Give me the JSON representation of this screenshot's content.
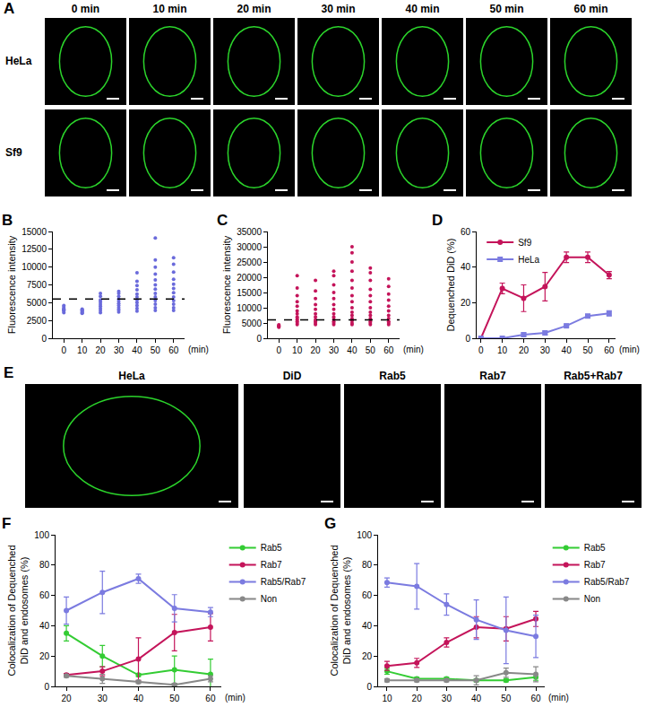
{
  "panels": [
    {
      "panel": "A",
      "columns": [
        "0 min",
        "10 min",
        "20 min",
        "30 min",
        "40 min",
        "50 min",
        "60 min"
      ],
      "rows": [
        "HeLa",
        "Sf9"
      ]
    },
    {
      "panel": "E",
      "images": [
        "HeLa",
        "DiD",
        "Rab5",
        "Rab7",
        "Rab5+Rab7"
      ]
    }
  ],
  "chart_data": [
    {
      "panel": "B",
      "type": "strip",
      "ylabel": [
        "Fluorescence intensity"
      ],
      "xlabel": "(min)",
      "color": "#6a6adb",
      "x": [
        0,
        10,
        20,
        30,
        40,
        50,
        60
      ],
      "values": [
        [
          3600,
          3800,
          3900,
          4000,
          4100,
          4200,
          4400,
          4600
        ],
        [
          3500,
          3600,
          3700,
          3800,
          3900,
          4000,
          4100
        ],
        [
          3600,
          3900,
          4200,
          4500,
          4800,
          5100,
          5400,
          5900,
          6300
        ],
        [
          3700,
          4000,
          4300,
          4600,
          4900,
          5200,
          5500,
          5900,
          6300,
          6600
        ],
        [
          3800,
          4200,
          4600,
          5000,
          5400,
          5800,
          6200,
          6800,
          7400,
          8000,
          9200
        ],
        [
          3900,
          4300,
          4800,
          5300,
          5800,
          6300,
          6900,
          7500,
          8200,
          9000,
          10000,
          11000,
          14100
        ],
        [
          3900,
          4300,
          4800,
          5300,
          5800,
          6400,
          7000,
          7600,
          8300,
          9300,
          10400,
          11300
        ]
      ],
      "reference_line": 5500,
      "xlim": [
        -6,
        66
      ],
      "xticks": [
        0,
        10,
        20,
        30,
        40,
        50,
        60
      ],
      "ylim": [
        0,
        15000
      ],
      "yticks": [
        0,
        2500,
        5000,
        7500,
        10000,
        12500,
        15000
      ],
      "grid": false
    },
    {
      "panel": "C",
      "type": "strip",
      "ylabel": [
        "Fluorescence intensity"
      ],
      "xlabel": "(min)",
      "color": "#c4145a",
      "x": [
        0,
        10,
        20,
        30,
        40,
        50,
        60
      ],
      "values": [
        [
          3600,
          3800,
          4000,
          4200,
          4400
        ],
        [
          4500,
          5000,
          5500,
          6000,
          6500,
          7000,
          8000,
          9000,
          10500,
          12000,
          14000,
          16500,
          20500
        ],
        [
          4500,
          5000,
          5500,
          6000,
          7000,
          8000,
          9500,
          11000,
          13000,
          15500,
          19000
        ],
        [
          4500,
          5000,
          5500,
          6200,
          7000,
          8000,
          9500,
          11000,
          13000,
          15000,
          17500,
          20500,
          22000
        ],
        [
          4500,
          5000,
          5800,
          6500,
          7500,
          8500,
          10000,
          12000,
          14000,
          16500,
          19000,
          22000,
          25000,
          28000,
          30000
        ],
        [
          4500,
          5000,
          5500,
          6500,
          7500,
          8500,
          10000,
          12000,
          14000,
          16000,
          19000,
          21500,
          23000
        ],
        [
          4500,
          5000,
          5500,
          6500,
          7500,
          9000,
          10500,
          12500,
          14500,
          17000,
          19500
        ]
      ],
      "reference_line": 6000,
      "xlim": [
        -6,
        66
      ],
      "xticks": [
        0,
        10,
        20,
        30,
        40,
        50,
        60
      ],
      "ylim": [
        0,
        35000
      ],
      "yticks": [
        0,
        5000,
        10000,
        15000,
        20000,
        25000,
        30000,
        35000
      ],
      "grid": false
    },
    {
      "panel": "D",
      "type": "line",
      "ylabel": [
        "Dequenched DiD (%)"
      ],
      "xlabel": "(min)",
      "x": [
        0,
        10,
        20,
        30,
        40,
        50,
        60
      ],
      "series": [
        {
          "name": "Sf9",
          "color": "#c4145a",
          "marker": "circle",
          "values": [
            0,
            28,
            22.5,
            29,
            45.5,
            45.5,
            35.5
          ],
          "error": [
            0,
            3,
            7.5,
            8,
            3,
            3,
            2
          ]
        },
        {
          "name": "HeLa",
          "color": "#7b7be0",
          "marker": "square",
          "values": [
            0,
            0,
            2,
            3,
            7,
            12.5,
            14
          ],
          "error": [
            0,
            0,
            1,
            1,
            0.5,
            0.5,
            1.5
          ]
        }
      ],
      "legend": "upper left",
      "xlim": [
        -2,
        63
      ],
      "xticks": [
        0,
        10,
        20,
        30,
        40,
        50,
        60
      ],
      "ylim": [
        0,
        60
      ],
      "yticks": [
        0,
        20,
        40,
        60
      ],
      "grid": false
    },
    {
      "panel": "F",
      "type": "line",
      "ylabel": [
        "Colocalization of Dequenched",
        "DiD and endosomes (%)"
      ],
      "xlabel": "(min)",
      "x": [
        20,
        30,
        40,
        50,
        60
      ],
      "series": [
        {
          "name": "Rab5",
          "color": "#33cc33",
          "marker": "circle",
          "values": [
            35,
            20,
            7.5,
            11,
            8
          ],
          "error": [
            5,
            7,
            1,
            9,
            10
          ]
        },
        {
          "name": "Rab7",
          "color": "#c4145a",
          "marker": "circle",
          "values": [
            7.5,
            10,
            18,
            35.5,
            39
          ],
          "error": [
            1,
            3,
            14,
            12,
            9
          ]
        },
        {
          "name": "Rab5/Rab7",
          "color": "#7b7be0",
          "marker": "circle",
          "values": [
            50,
            62,
            71,
            51.5,
            49
          ],
          "error": [
            9,
            14,
            3,
            9,
            3
          ]
        },
        {
          "name": "Non",
          "color": "#888888",
          "marker": "circle",
          "values": [
            7,
            5,
            3,
            1,
            5
          ],
          "error": [
            1,
            3,
            1,
            1,
            2
          ]
        }
      ],
      "legend": "right",
      "xlim": [
        17,
        63
      ],
      "xticks": [
        20,
        30,
        40,
        50,
        60
      ],
      "ylim": [
        0,
        100
      ],
      "yticks": [
        0,
        20,
        40,
        60,
        80,
        100
      ],
      "grid": false
    },
    {
      "panel": "G",
      "type": "line",
      "ylabel": [
        "Colocalization of Dequenched",
        "DiD and endosomes (%)"
      ],
      "xlabel": "(min)",
      "x": [
        10,
        20,
        30,
        40,
        50,
        60
      ],
      "series": [
        {
          "name": "Rab5",
          "color": "#33cc33",
          "marker": "circle",
          "values": [
            10,
            5,
            5,
            4,
            4,
            6
          ],
          "error": [
            2,
            1,
            1,
            1,
            1,
            2
          ]
        },
        {
          "name": "Rab7",
          "color": "#c4145a",
          "marker": "circle",
          "values": [
            13.5,
            15.5,
            29,
            39,
            38,
            44.5
          ],
          "error": [
            3,
            3,
            3,
            7,
            8,
            5
          ]
        },
        {
          "name": "Rab5/Rab7",
          "color": "#7b7be0",
          "marker": "circle",
          "values": [
            68.5,
            66,
            54,
            44,
            37,
            33
          ],
          "error": [
            3,
            15,
            7,
            13,
            22,
            14
          ]
        },
        {
          "name": "Non",
          "color": "#888888",
          "marker": "circle",
          "values": [
            4,
            4,
            4,
            4,
            9,
            8
          ],
          "error": [
            1,
            1,
            1,
            3,
            3,
            5
          ]
        }
      ],
      "legend": "right",
      "xlim": [
        7,
        63
      ],
      "xticks": [
        10,
        20,
        30,
        40,
        50,
        60
      ],
      "ylim": [
        0,
        100
      ],
      "yticks": [
        0,
        20,
        40,
        60,
        80,
        100
      ],
      "grid": false
    }
  ]
}
